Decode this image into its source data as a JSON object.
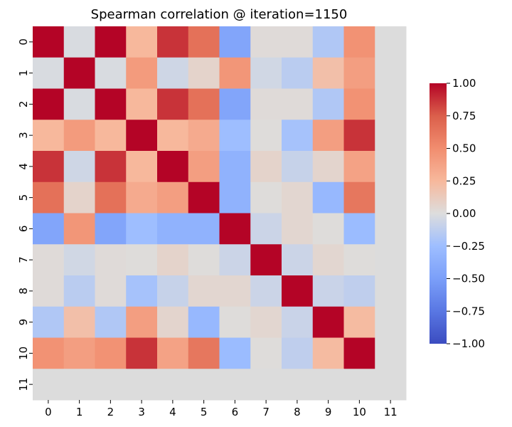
{
  "chart_data": {
    "type": "heatmap",
    "title": "Spearman correlation @ iteration=1150",
    "x_labels": [
      "0",
      "1",
      "2",
      "3",
      "4",
      "5",
      "6",
      "7",
      "8",
      "9",
      "10",
      "11"
    ],
    "y_labels": [
      "0",
      "1",
      "2",
      "3",
      "4",
      "5",
      "6",
      "7",
      "8",
      "9",
      "10",
      "11"
    ],
    "values": [
      [
        1.0,
        -0.02,
        1.0,
        0.25,
        0.87,
        0.65,
        -0.45,
        0.02,
        0.02,
        -0.18,
        0.47,
        null
      ],
      [
        -0.02,
        1.0,
        -0.02,
        0.42,
        -0.06,
        0.07,
        0.45,
        -0.05,
        -0.14,
        0.2,
        0.4,
        null
      ],
      [
        1.0,
        -0.02,
        1.0,
        0.25,
        0.87,
        0.65,
        -0.45,
        0.02,
        0.02,
        -0.18,
        0.47,
        null
      ],
      [
        0.25,
        0.42,
        0.25,
        1.0,
        0.25,
        0.33,
        -0.25,
        0.01,
        -0.22,
        0.4,
        0.87,
        null
      ],
      [
        0.87,
        -0.06,
        0.87,
        0.25,
        1.0,
        0.4,
        -0.35,
        0.07,
        -0.09,
        0.06,
        0.38,
        null
      ],
      [
        0.65,
        0.07,
        0.65,
        0.33,
        0.4,
        1.0,
        -0.35,
        0.01,
        0.05,
        -0.3,
        0.62,
        null
      ],
      [
        -0.45,
        0.45,
        -0.45,
        -0.25,
        -0.35,
        -0.35,
        1.0,
        -0.07,
        0.05,
        0.01,
        -0.27,
        null
      ],
      [
        0.02,
        -0.05,
        0.02,
        0.01,
        0.07,
        0.01,
        -0.07,
        1.0,
        -0.07,
        0.05,
        0.01,
        null
      ],
      [
        0.02,
        -0.14,
        0.02,
        -0.22,
        -0.09,
        0.05,
        0.05,
        -0.07,
        1.0,
        -0.08,
        -0.12,
        null
      ],
      [
        -0.18,
        0.2,
        -0.18,
        0.4,
        0.06,
        -0.3,
        0.01,
        0.05,
        -0.08,
        1.0,
        0.23,
        null
      ],
      [
        0.47,
        0.4,
        0.47,
        0.87,
        0.38,
        0.62,
        -0.27,
        0.01,
        -0.12,
        0.23,
        1.0,
        null
      ],
      [
        null,
        null,
        null,
        null,
        null,
        null,
        null,
        null,
        null,
        null,
        null,
        null
      ]
    ],
    "vmin": -1.0,
    "vmax": 1.0,
    "colormap": "coolwarm",
    "missing_color": "#dcdcdc",
    "colorbar_ticks": [
      "1.00",
      "0.75",
      "0.50",
      "0.25",
      "0.00",
      "−0.25",
      "−0.50",
      "−0.75",
      "−1.00"
    ],
    "colorbar_tick_values": [
      1.0,
      0.75,
      0.5,
      0.25,
      0.0,
      -0.25,
      -0.5,
      -0.75,
      -1.0
    ],
    "grid": false
  }
}
